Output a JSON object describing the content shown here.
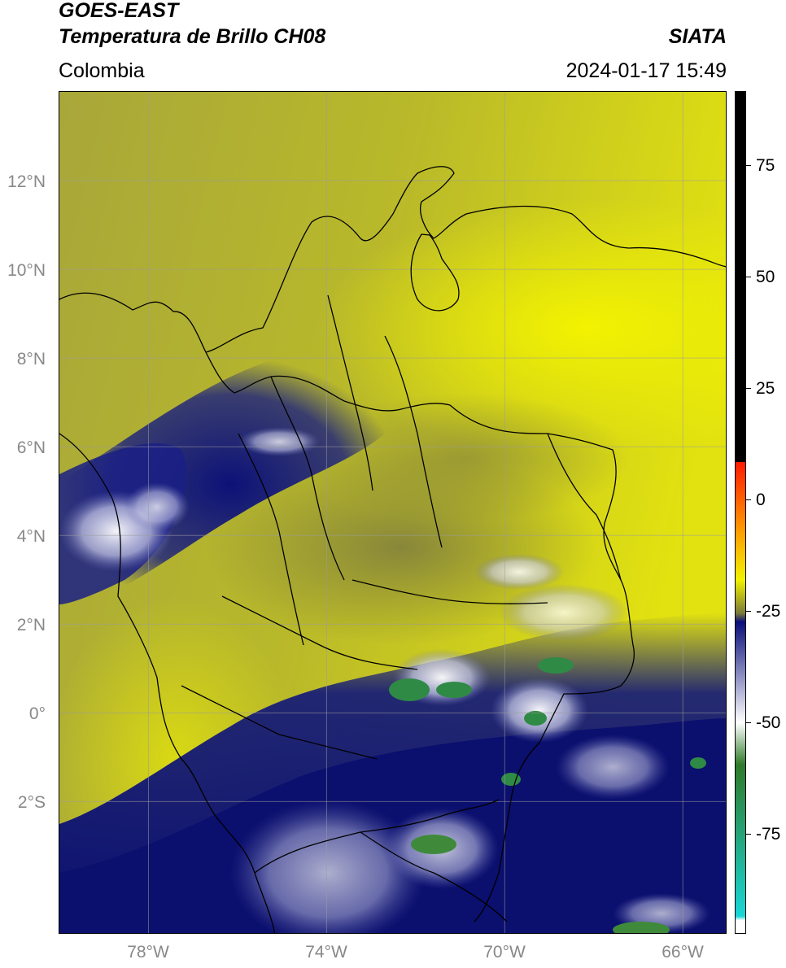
{
  "header": {
    "title_line1": "GOES-EAST",
    "title_line2": "Temperatura de Brillo CH08",
    "subtitle": "Colombia",
    "brand": "SIATA",
    "timestamp": "2024-01-17 15:49"
  },
  "axes": {
    "lat_labels": [
      {
        "value": 12,
        "label": "12°N"
      },
      {
        "value": 10,
        "label": "10°N"
      },
      {
        "value": 8,
        "label": "8°N"
      },
      {
        "value": 6,
        "label": "6°N"
      },
      {
        "value": 4,
        "label": "4°N"
      },
      {
        "value": 2,
        "label": "2°N"
      },
      {
        "value": 0,
        "label": "0°"
      },
      {
        "value": -2,
        "label": "2°S"
      }
    ],
    "lon_labels": [
      {
        "value": -78,
        "label": "78°W"
      },
      {
        "value": -74,
        "label": "74°W"
      },
      {
        "value": -70,
        "label": "70°W"
      },
      {
        "value": -66,
        "label": "66°W"
      }
    ],
    "extent": {
      "lon_min": -80,
      "lon_max": -65,
      "lat_min": -5,
      "lat_max": 14
    }
  },
  "colorbar": {
    "ticks": [
      {
        "value": 75,
        "label": "75"
      },
      {
        "value": 50,
        "label": "50"
      },
      {
        "value": 25,
        "label": "25"
      },
      {
        "value": 0,
        "label": "0"
      },
      {
        "value": -25,
        "label": "-25"
      },
      {
        "value": -50,
        "label": "-50"
      },
      {
        "value": -75,
        "label": "-75"
      }
    ],
    "colors": {
      "black": "#000000",
      "red": "#ff1a00",
      "orange": "#ff9900",
      "yellow": "#f2f200",
      "olive": "#7a7a3a",
      "navy": "#0a0f7a",
      "white": "#ffffff",
      "green": "#2f7a2a",
      "cyan": "#19d6d6"
    }
  }
}
